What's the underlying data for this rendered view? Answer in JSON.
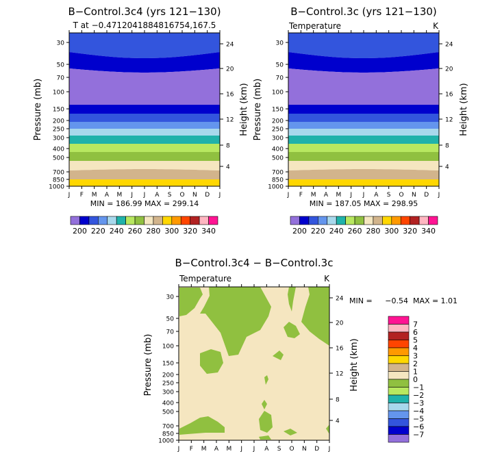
{
  "colors": {
    "levels": [
      "#9370db",
      "#0000cd",
      "#3355dd",
      "#6495ed",
      "#a8d8ec",
      "#20b2aa",
      "#b8e860",
      "#90c040",
      "#f5e6c0",
      "#d2b48c",
      "#ffd700",
      "#ff9900",
      "#ff4500",
      "#b22222",
      "#ffb6c1",
      "#ff1493"
    ],
    "diff_bg": "#f5e6c0",
    "diff_neg": "#90c040"
  },
  "chart_data": [
    {
      "type": "contour",
      "title": "B−Control.3c4 (yrs 121−130)",
      "subtitle": "T at −0.4712041884816754,167.5",
      "ylabel": "Pressure (mb)",
      "ylabel_right": "Height (km)",
      "x_ticks": [
        "J",
        "F",
        "M",
        "A",
        "M",
        "J",
        "J",
        "A",
        "S",
        "O",
        "N",
        "D",
        "J"
      ],
      "y_ticks": [
        "30",
        "50",
        "70",
        "100",
        "150",
        "200",
        "250",
        "300",
        "400",
        "500",
        "700",
        "850",
        "1000"
      ],
      "y_ticks_right": [
        "24",
        "20",
        "16",
        "12",
        "8",
        "4"
      ],
      "stats": "MIN = 186.99 MAX = 299.14",
      "min": 186.99,
      "max": 299.14,
      "colorbar_labels": [
        "200",
        "220",
        "240",
        "260",
        "280",
        "300",
        "320",
        "340"
      ]
    },
    {
      "type": "contour",
      "title": "B−Control.3c (yrs 121−130)",
      "subtitle_left": "Temperature",
      "subtitle_right": "K",
      "ylabel": "Pressure (mb)",
      "ylabel_right": "Height (km)",
      "x_ticks": [
        "J",
        "F",
        "M",
        "A",
        "M",
        "J",
        "J",
        "A",
        "S",
        "O",
        "N",
        "D",
        "J"
      ],
      "y_ticks": [
        "30",
        "50",
        "70",
        "100",
        "150",
        "200",
        "250",
        "300",
        "400",
        "500",
        "700",
        "850",
        "1000"
      ],
      "y_ticks_right": [
        "24",
        "20",
        "16",
        "12",
        "8",
        "4"
      ],
      "stats": "MIN = 187.05 MAX = 298.95",
      "min": 187.05,
      "max": 298.95,
      "colorbar_labels": [
        "200",
        "220",
        "240",
        "260",
        "280",
        "300",
        "320",
        "340"
      ]
    },
    {
      "type": "contour",
      "title": "B−Control.3c4 − B−Control.3c",
      "subtitle_left": "Temperature",
      "subtitle_right": "K",
      "ylabel": "Pressure (mb)",
      "ylabel_right": "Height (km)",
      "x_ticks": [
        "J",
        "F",
        "M",
        "A",
        "M",
        "J",
        "J",
        "A",
        "S",
        "O",
        "N",
        "D",
        "J"
      ],
      "y_ticks": [
        "30",
        "50",
        "70",
        "100",
        "150",
        "200",
        "250",
        "300",
        "400",
        "500",
        "700",
        "850",
        "1000"
      ],
      "y_ticks_right": [
        "24",
        "20",
        "16",
        "12",
        "8",
        "4"
      ],
      "stats_min_label": "MIN =",
      "stats_min": "−0.54",
      "stats_max_label": "MAX =",
      "stats_max": "1.01",
      "min": -0.54,
      "max": 1.01,
      "colorbar_labels": [
        "7",
        "6",
        "5",
        "4",
        "3",
        "2",
        "1",
        "0",
        "−1",
        "−2",
        "−3",
        "−4",
        "−5",
        "−6",
        "−7"
      ]
    }
  ]
}
